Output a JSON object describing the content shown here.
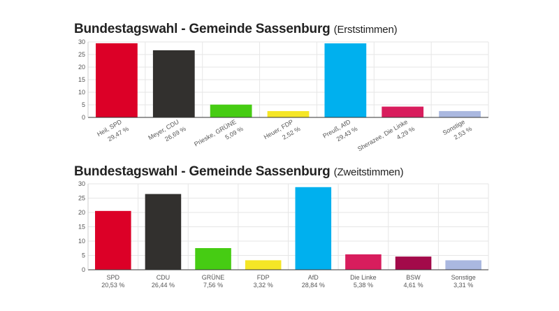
{
  "chart_data": [
    {
      "type": "bar",
      "title": "Bundestagswahl - Gemeinde Sassenburg",
      "subtitle": "(Erststimmen)",
      "categories": [
        {
          "name": "Heil, SPD",
          "value_label": "29,47 %"
        },
        {
          "name": "Meyer, CDU",
          "value_label": "26,69 %"
        },
        {
          "name": "Prieske, GRÜNE",
          "value_label": "5,09 %"
        },
        {
          "name": "Heuer, FDP",
          "value_label": "2,52 %"
        },
        {
          "name": "Preuß, AfD",
          "value_label": "29,43 %"
        },
        {
          "name": "Sherazee, Die Linke",
          "value_label": "4,29 %"
        },
        {
          "name": "Sonstige",
          "value_label": "2,53 %"
        }
      ],
      "values": [
        29.47,
        26.69,
        5.09,
        2.52,
        29.43,
        4.29,
        2.53
      ],
      "colors": [
        "#dc0027",
        "#32302e",
        "#46cc13",
        "#f5e626",
        "#00b0ee",
        "#d81d5d",
        "#aab8e0"
      ],
      "ylim": [
        0,
        30
      ],
      "yticks": [
        0,
        5,
        10,
        15,
        20,
        25,
        30
      ],
      "grid": true
    },
    {
      "type": "bar",
      "title": "Bundestagswahl - Gemeinde Sassenburg",
      "subtitle": "(Zweitstimmen)",
      "categories": [
        {
          "name": "SPD",
          "value_label": "20,53 %"
        },
        {
          "name": "CDU",
          "value_label": "26,44 %"
        },
        {
          "name": "GRÜNE",
          "value_label": "7,56 %"
        },
        {
          "name": "FDP",
          "value_label": "3,32 %"
        },
        {
          "name": "AfD",
          "value_label": "28,84 %"
        },
        {
          "name": "Die Linke",
          "value_label": "5,38 %"
        },
        {
          "name": "BSW",
          "value_label": "4,61 %"
        },
        {
          "name": "Sonstige",
          "value_label": "3,31 %"
        }
      ],
      "values": [
        20.53,
        26.44,
        7.56,
        3.32,
        28.84,
        5.38,
        4.61,
        3.31
      ],
      "colors": [
        "#dc0027",
        "#32302e",
        "#46cc13",
        "#f5e626",
        "#00b0ee",
        "#d81d5d",
        "#a30a4a",
        "#aab8e0"
      ],
      "ylim": [
        0,
        30
      ],
      "yticks": [
        0,
        5,
        10,
        15,
        20,
        25,
        30
      ],
      "grid": true
    }
  ]
}
